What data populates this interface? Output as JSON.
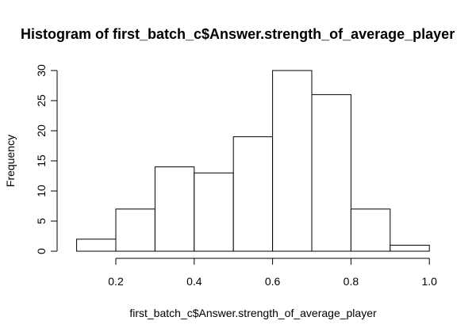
{
  "chart_data": {
    "type": "bar",
    "title": "Histogram of first_batch_c$Answer.strength_of_average_player",
    "xlabel": "first_batch_c$Answer.strength_of_average_player",
    "ylabel": "Frequency",
    "bins": [
      {
        "start": 0.1,
        "end": 0.2,
        "count": 2
      },
      {
        "start": 0.2,
        "end": 0.3,
        "count": 7
      },
      {
        "start": 0.3,
        "end": 0.4,
        "count": 14
      },
      {
        "start": 0.4,
        "end": 0.5,
        "count": 13
      },
      {
        "start": 0.5,
        "end": 0.6,
        "count": 19
      },
      {
        "start": 0.6,
        "end": 0.7,
        "count": 30
      },
      {
        "start": 0.7,
        "end": 0.8,
        "count": 26
      },
      {
        "start": 0.8,
        "end": 0.9,
        "count": 7
      },
      {
        "start": 0.9,
        "end": 1.0,
        "count": 1
      }
    ],
    "xticks": [
      "0.2",
      "0.4",
      "0.6",
      "0.8",
      "1.0"
    ],
    "yticks": [
      "0",
      "5",
      "10",
      "15",
      "20",
      "25",
      "30"
    ],
    "xlim": [
      0.2,
      1.0
    ],
    "ylim": [
      0,
      30
    ],
    "grid": false,
    "bar_fill": "#ffffff",
    "bar_stroke": "#000000"
  }
}
